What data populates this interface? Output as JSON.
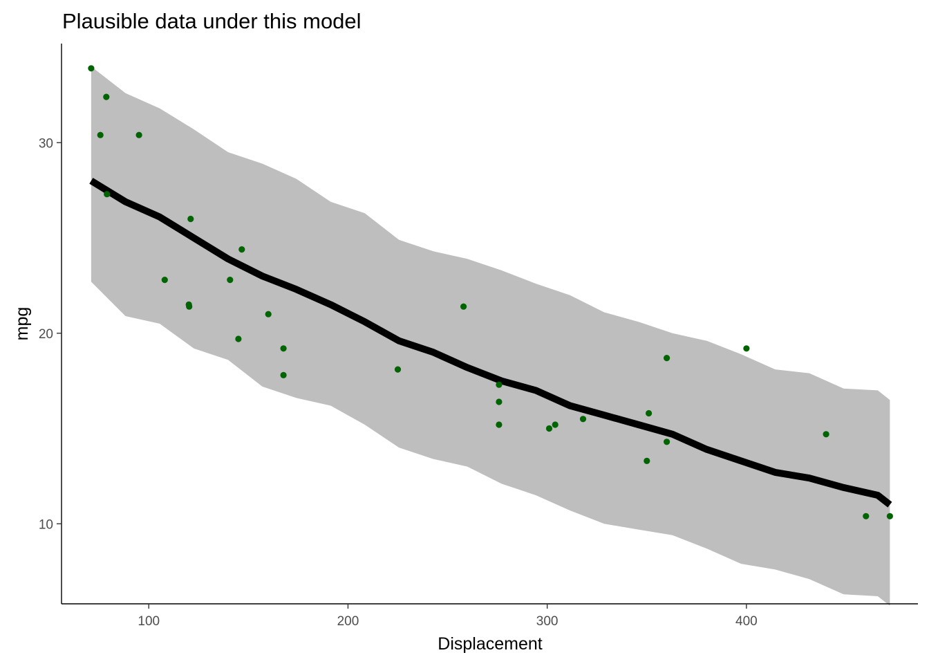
{
  "chart_data": {
    "type": "scatter",
    "title": "Plausible data under this model",
    "xlabel": "Displacement",
    "ylabel": "mpg",
    "xlim": [
      56.2,
      486.1
    ],
    "ylim": [
      5.8,
      35.2
    ],
    "x_ticks": [
      {
        "value": 100,
        "label": "100"
      },
      {
        "value": 200,
        "label": "200"
      },
      {
        "value": 300,
        "label": "300"
      },
      {
        "value": 400,
        "label": "400"
      }
    ],
    "y_ticks": [
      {
        "value": 10,
        "label": "10"
      },
      {
        "value": 20,
        "label": "20"
      },
      {
        "value": 30,
        "label": "30"
      }
    ],
    "grid": false,
    "colors": {
      "points": "#006400",
      "line": "#000000",
      "band": "#bebebe"
    },
    "band": {
      "x": [
        71.1,
        88.3,
        105.5,
        122.6,
        139.8,
        157.0,
        174.1,
        191.3,
        208.4,
        225.6,
        242.8,
        259.9,
        277.1,
        294.3,
        311.4,
        328.6,
        345.8,
        362.9,
        380.1,
        397.3,
        414.4,
        431.6,
        448.8,
        465.9,
        472.0
      ],
      "lower": [
        22.7,
        20.9,
        20.5,
        19.2,
        18.6,
        17.2,
        16.6,
        16.2,
        15.2,
        14.0,
        13.4,
        13.0,
        12.1,
        11.5,
        10.7,
        10.0,
        9.7,
        9.4,
        8.7,
        7.9,
        7.6,
        7.1,
        6.3,
        6.2,
        5.7
      ],
      "upper": [
        34.0,
        32.6,
        31.8,
        30.7,
        29.5,
        28.9,
        28.1,
        26.9,
        26.3,
        24.9,
        24.3,
        23.9,
        23.3,
        22.6,
        22.0,
        21.1,
        20.6,
        20.0,
        19.6,
        18.9,
        18.1,
        17.9,
        17.1,
        17.0,
        16.5
      ]
    },
    "line": {
      "x": [
        71.1,
        88.3,
        105.5,
        122.6,
        139.8,
        157.0,
        174.1,
        191.3,
        208.4,
        225.6,
        242.8,
        259.9,
        277.1,
        294.3,
        311.4,
        328.6,
        345.8,
        362.9,
        380.1,
        397.3,
        414.4,
        431.6,
        448.8,
        465.9,
        472.0
      ],
      "y": [
        28.0,
        26.9,
        26.1,
        25.0,
        23.9,
        23.0,
        22.3,
        21.5,
        20.6,
        19.6,
        19.0,
        18.2,
        17.5,
        17.0,
        16.2,
        15.7,
        15.2,
        14.7,
        13.9,
        13.3,
        12.7,
        12.4,
        11.9,
        11.5,
        11.0
      ]
    },
    "points": {
      "x": [
        71.1,
        75.7,
        78.7,
        79.0,
        95.1,
        108.0,
        120.1,
        120.3,
        121.0,
        140.8,
        145.0,
        146.7,
        160.0,
        167.6,
        167.6,
        225.0,
        258.0,
        275.8,
        275.8,
        275.8,
        301.0,
        304.0,
        318.0,
        350.0,
        351.0,
        360.0,
        360.0,
        400.0,
        440.0,
        460.0,
        472.0
      ],
      "y": [
        33.9,
        30.4,
        32.4,
        27.3,
        30.4,
        22.8,
        21.5,
        21.4,
        26.0,
        22.8,
        19.7,
        24.4,
        21.0,
        19.2,
        17.8,
        18.1,
        21.4,
        17.3,
        16.4,
        15.2,
        15.0,
        15.2,
        15.5,
        13.3,
        15.8,
        18.7,
        14.3,
        19.2,
        14.7,
        10.4,
        10.4
      ]
    }
  }
}
